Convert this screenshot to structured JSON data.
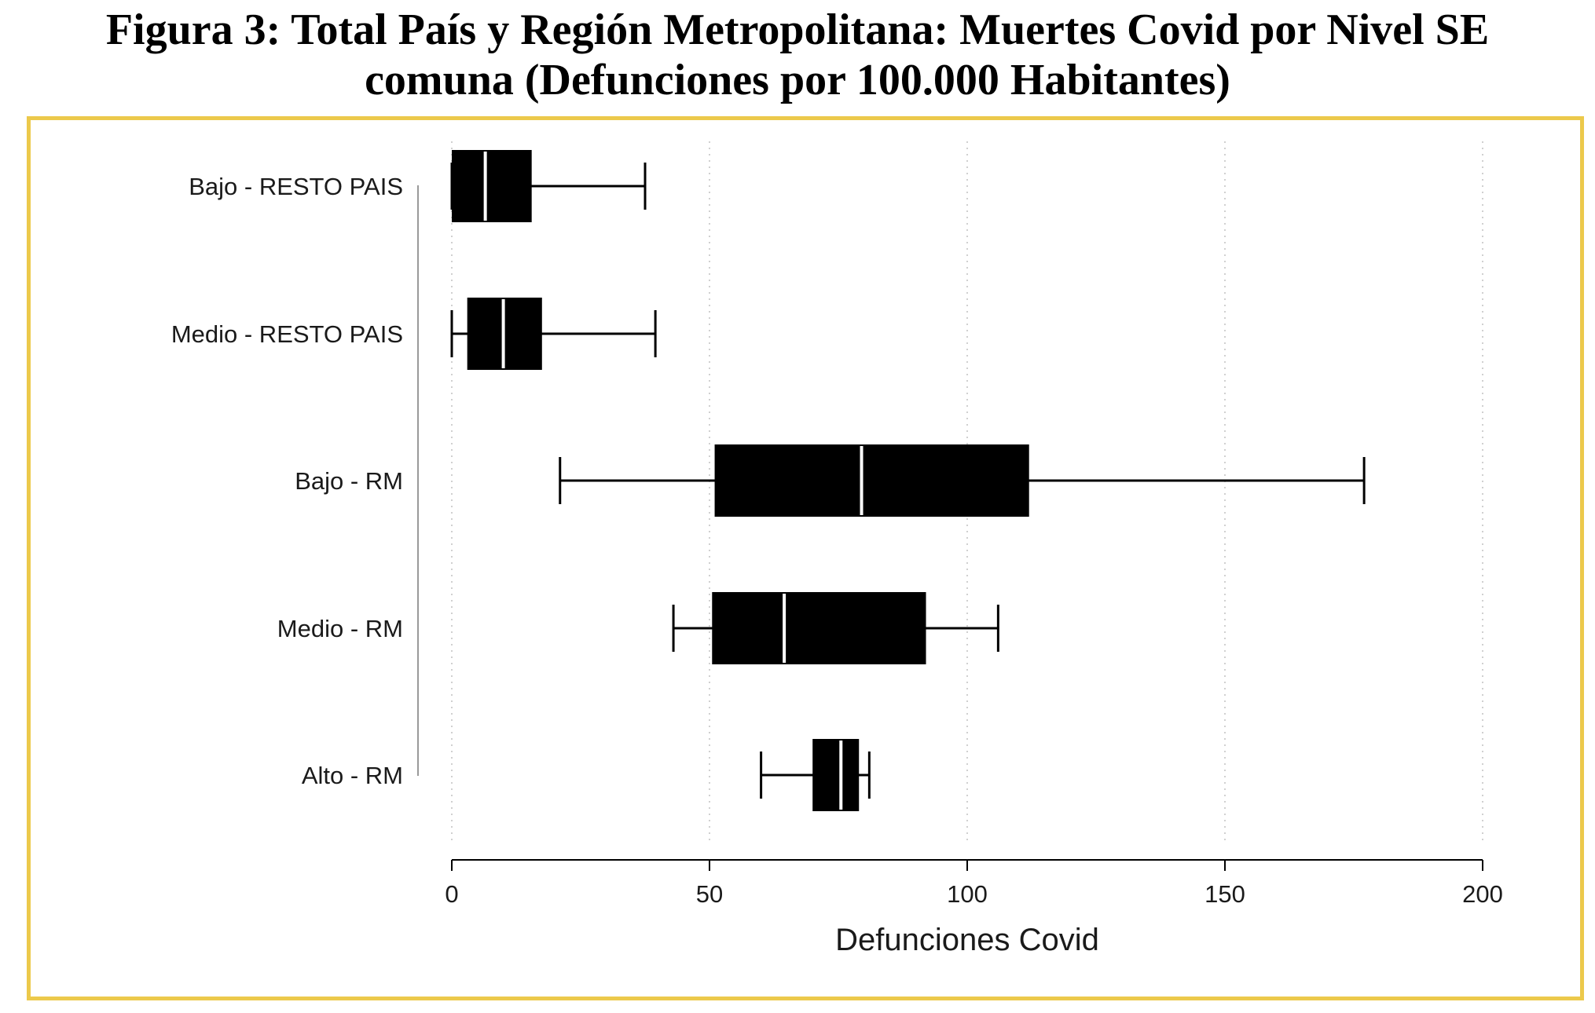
{
  "figure": {
    "title_line1": "Figura 3: Total País y Región Metropolitana: Muertes Covid por Nivel SE",
    "title_line2": "comuna (Defunciones por 100.000 Habitantes)"
  },
  "colors": {
    "frame": "#ecc94b",
    "box": "#000000",
    "median": "#ffffff",
    "grid": "#d0d0d0"
  },
  "chart_data": {
    "type": "boxplot",
    "orientation": "horizontal",
    "xlabel": "Defunciones Covid",
    "xlim": [
      0,
      200
    ],
    "xticks": [
      0,
      50,
      100,
      150,
      200
    ],
    "grid": "vertical dotted",
    "legend": "none",
    "series": [
      {
        "category": "Bajo - RESTO PAIS",
        "min": 0,
        "q1": 0,
        "median": 6.5,
        "q3": 15.5,
        "max": 37.5
      },
      {
        "category": "Medio - RESTO PAIS",
        "min": 0,
        "q1": 3,
        "median": 10,
        "q3": 17.5,
        "max": 39.5
      },
      {
        "category": "Bajo - RM",
        "min": 21,
        "q1": 51,
        "median": 79.5,
        "q3": 112,
        "max": 177
      },
      {
        "category": "Medio - RM",
        "min": 43,
        "q1": 50.5,
        "median": 64.5,
        "q3": 92,
        "max": 106
      },
      {
        "category": "Alto - RM",
        "min": 60,
        "q1": 70,
        "median": 75.5,
        "q3": 79,
        "max": 81
      }
    ]
  }
}
